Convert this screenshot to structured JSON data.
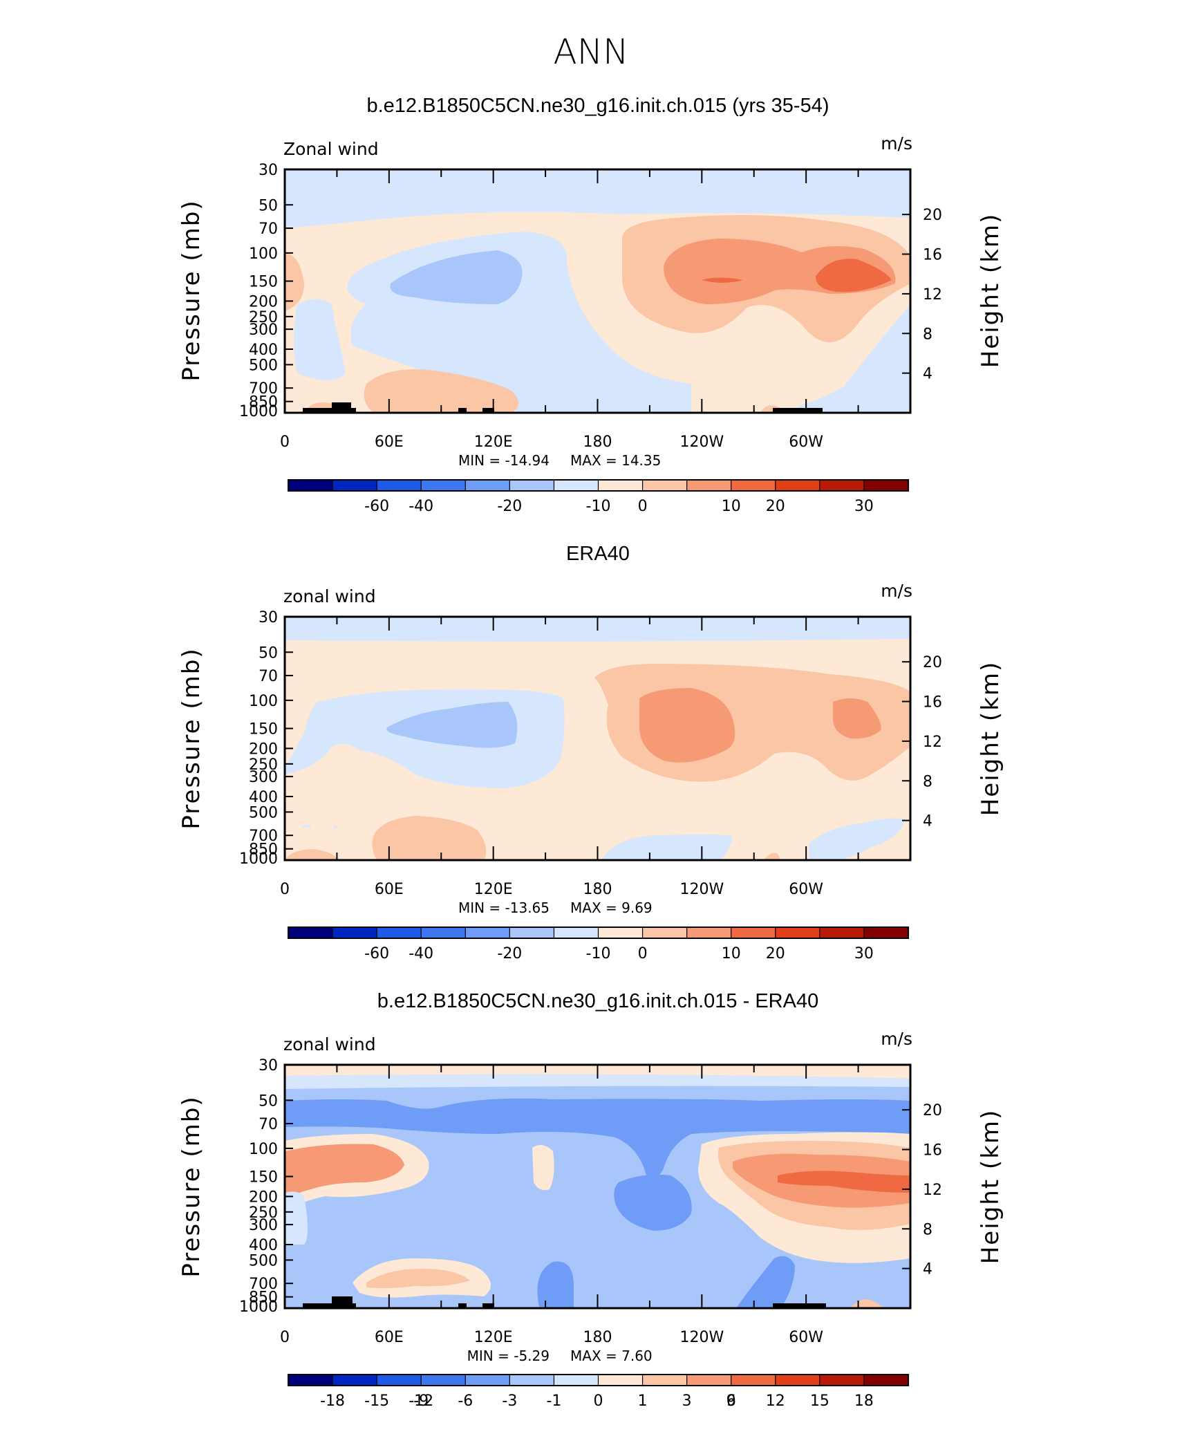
{
  "figure": {
    "title": "ANN",
    "y_label_left": "Pressure (mb)",
    "y_label_right": "Height (km)",
    "variable_label": "zonal wind"
  },
  "chart_data": [
    {
      "type": "heatmap",
      "title": "b.e12.B1850C5CN.ne30_g16.init.ch.015 (yrs 35-54)",
      "variable": "Zonal wind",
      "units": "m/s",
      "xlabel": "",
      "ylabel": "Pressure (mb)",
      "ylabel_right": "Height (km)",
      "x_ticks": [
        "0",
        "60E",
        "120E",
        "180",
        "120W",
        "60W"
      ],
      "y_ticks": [
        "30",
        "50",
        "70",
        "100",
        "150",
        "200",
        "250",
        "300",
        "400",
        "500",
        "700",
        "850",
        "1000"
      ],
      "y_right_ticks": [
        "20",
        "16",
        "12",
        "8",
        "4"
      ],
      "min_label": "MIN = -14.94",
      "max_label": "MAX = 14.35",
      "colorbar_labels": [
        "-60",
        "-40",
        "-20",
        "-10",
        "0",
        "10",
        "20",
        "30"
      ],
      "colorbar_colors": [
        "#00007d",
        "#0026c2",
        "#1e5ae6",
        "#3d78f0",
        "#6e9cf6",
        "#a9c6fb",
        "#d6e7fd",
        "#fde9d6",
        "#fbc6a6",
        "#f69a76",
        "#ef6a43",
        "#e13f18",
        "#b81a08",
        "#820000"
      ]
    },
    {
      "type": "heatmap",
      "title": "ERA40",
      "variable": "zonal wind",
      "units": "m/s",
      "xlabel": "",
      "ylabel": "Pressure (mb)",
      "ylabel_right": "Height (km)",
      "x_ticks": [
        "0",
        "60E",
        "120E",
        "180",
        "120W",
        "60W"
      ],
      "y_ticks": [
        "30",
        "50",
        "70",
        "100",
        "150",
        "200",
        "250",
        "300",
        "400",
        "500",
        "700",
        "850",
        "1000"
      ],
      "y_right_ticks": [
        "20",
        "16",
        "12",
        "8",
        "4"
      ],
      "min_label": "MIN = -13.65",
      "max_label": "MAX = 9.69",
      "colorbar_labels": [
        "-60",
        "-40",
        "-20",
        "-10",
        "0",
        "10",
        "20",
        "30"
      ],
      "colorbar_colors": [
        "#00007d",
        "#0026c2",
        "#1e5ae6",
        "#3d78f0",
        "#6e9cf6",
        "#a9c6fb",
        "#d6e7fd",
        "#fde9d6",
        "#fbc6a6",
        "#f69a76",
        "#ef6a43",
        "#e13f18",
        "#b81a08",
        "#820000"
      ]
    },
    {
      "type": "heatmap",
      "title": "b.e12.B1850C5CN.ne30_g16.init.ch.015 - ERA40",
      "variable": "zonal wind",
      "units": "m/s",
      "xlabel": "",
      "ylabel": "Pressure (mb)",
      "ylabel_right": "Height (km)",
      "x_ticks": [
        "0",
        "60E",
        "120E",
        "180",
        "120W",
        "60W"
      ],
      "y_ticks": [
        "30",
        "50",
        "70",
        "100",
        "150",
        "200",
        "250",
        "300",
        "400",
        "500",
        "700",
        "850",
        "1000"
      ],
      "y_right_ticks": [
        "20",
        "16",
        "12",
        "8",
        "4"
      ],
      "min_label": "MIN = -5.29",
      "max_label": "MAX = 7.60",
      "colorbar_labels": [
        "-18",
        "-15",
        "-12",
        "-9",
        "-6",
        "-3",
        "-1",
        "0",
        "1",
        "3",
        "6",
        "9",
        "12",
        "15",
        "18"
      ],
      "colorbar_colors": [
        "#00007d",
        "#0026c2",
        "#1e5ae6",
        "#3d78f0",
        "#6e9cf6",
        "#a9c6fb",
        "#d6e7fd",
        "#fde9d6",
        "#fbc6a6",
        "#f69a76",
        "#ef6a43",
        "#e13f18",
        "#b81a08",
        "#820000"
      ]
    }
  ]
}
